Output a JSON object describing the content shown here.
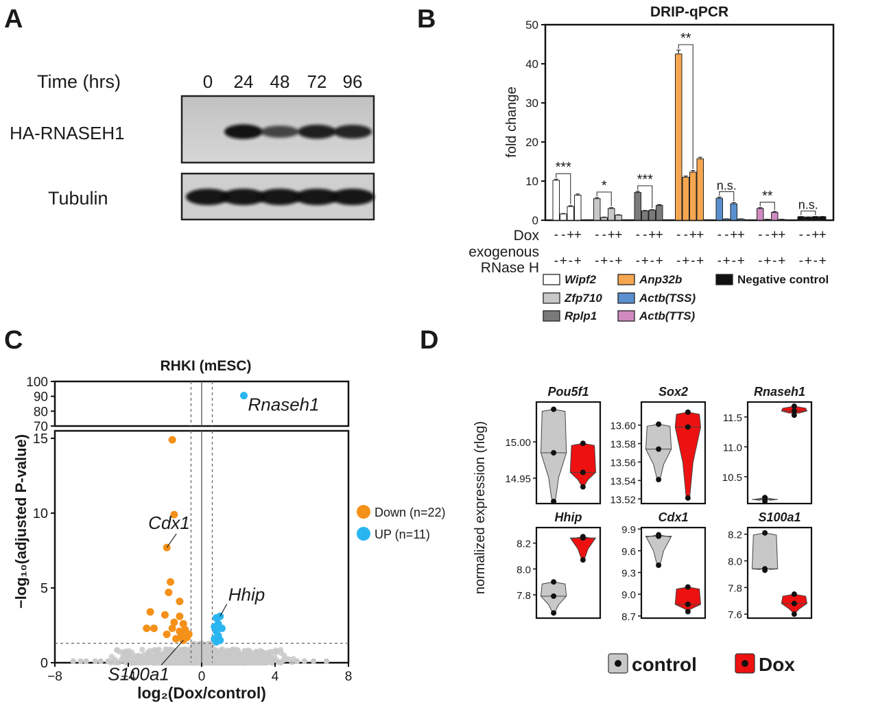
{
  "panel_letters": {
    "a": "A",
    "b": "B",
    "c": "C",
    "d": "D"
  },
  "panel_a": {
    "time_label": "Time (hrs)",
    "timepoints": [
      "0",
      "24",
      "48",
      "72",
      "96"
    ],
    "blot_labels": [
      "HA-RNASEH1",
      "Tubulin"
    ],
    "ha_band_intensity": [
      0.0,
      0.95,
      0.55,
      0.85,
      0.8
    ],
    "tubulin_band_intensity": [
      1,
      1,
      1,
      1,
      1
    ]
  },
  "panel_b": {
    "chart_data": {
      "type": "bar",
      "title": "DRIP-qPCR",
      "ylabel": "fold change",
      "ylim": [
        0,
        50
      ],
      "yticks": [
        0,
        10,
        20,
        30,
        40,
        50
      ],
      "row_labels": {
        "dox": "Dox",
        "rnase_line1": "exogenous",
        "rnase_line2": "RNase H"
      },
      "condition_dox": [
        "-",
        "-",
        "+",
        "+"
      ],
      "condition_rnase": [
        "-",
        "+",
        "-",
        "+"
      ],
      "genes": [
        {
          "name": "Wipf2",
          "color": "#ffffff",
          "values": [
            10.2,
            1.6,
            3.5,
            6.4
          ],
          "errors": [
            0.3,
            0.1,
            0.2,
            0.3
          ],
          "sig": "***"
        },
        {
          "name": "Zfp710",
          "color": "#c8c8c8",
          "values": [
            5.5,
            0.7,
            3.0,
            1.3
          ],
          "errors": [
            0.3,
            0.1,
            0.2,
            0.1
          ],
          "sig": "*"
        },
        {
          "name": "Rplp1",
          "color": "#7a7a7a",
          "values": [
            7.1,
            2.4,
            2.6,
            3.8
          ],
          "errors": [
            0.3,
            0.1,
            0.1,
            0.2
          ],
          "sig": "***"
        },
        {
          "name": "Anp32b",
          "color": "#f5a650",
          "values": [
            42.5,
            11.0,
            12.3,
            15.7
          ],
          "errors": [
            1.0,
            0.3,
            0.4,
            0.4
          ],
          "sig": "**"
        },
        {
          "name": "Actb(TSS)",
          "color": "#5a8fd0",
          "values": [
            5.6,
            0.3,
            4.2,
            0.3
          ],
          "errors": [
            0.3,
            0.05,
            0.3,
            0.05
          ],
          "sig": "n.s."
        },
        {
          "name": "Actb(TTS)",
          "color": "#d08ac0",
          "values": [
            3.0,
            0.2,
            2.0,
            0.2
          ],
          "errors": [
            0.2,
            0.05,
            0.2,
            0.05
          ],
          "sig": "**"
        },
        {
          "name": "Negative control",
          "color": "#111111",
          "values": [
            0.9,
            0.8,
            0.9,
            0.9
          ],
          "errors": [
            0.05,
            0.05,
            0.05,
            0.05
          ],
          "sig": "n.s."
        }
      ]
    }
  },
  "panel_c": {
    "chart_data": {
      "type": "scatter",
      "title": "RHKI (mESC)",
      "xlabel": "log₂(Dox/control)",
      "ylabel": "−log₁₀(adjusted P-value)",
      "xlim": [
        -8,
        8
      ],
      "xticks": [
        -8,
        -4,
        0,
        4,
        8
      ],
      "ylim_lower": [
        0,
        15.5
      ],
      "yticks_lower": [
        0,
        5,
        10,
        15
      ],
      "ylim_upper": [
        70,
        100
      ],
      "yticks_upper": [
        70,
        80,
        90,
        100
      ],
      "threshold_x": [
        -0.58,
        0.58
      ],
      "threshold_y": 1.3,
      "legend": [
        {
          "label": "Down (n=22)",
          "color": "#f59018"
        },
        {
          "label": "UP (n=11)",
          "color": "#29b6f0"
        }
      ],
      "down_points": [
        [
          -1.6,
          14.9
        ],
        [
          -1.5,
          9.9
        ],
        [
          -1.9,
          7.7
        ],
        [
          -1.7,
          5.4
        ],
        [
          -1.8,
          4.7
        ],
        [
          -1.2,
          4.1
        ],
        [
          -2.8,
          3.4
        ],
        [
          -2.0,
          3.2
        ],
        [
          -1.2,
          3.1
        ],
        [
          -1.5,
          2.7
        ],
        [
          -1.0,
          2.6
        ],
        [
          -3.0,
          2.3
        ],
        [
          -2.6,
          2.3
        ],
        [
          -1.6,
          2.3
        ],
        [
          -1.2,
          2.1
        ],
        [
          -0.9,
          2.2
        ],
        [
          -1.9,
          1.9
        ],
        [
          -1.4,
          1.6
        ],
        [
          -1.0,
          1.5
        ],
        [
          -0.8,
          1.7
        ],
        [
          -0.7,
          1.9
        ],
        [
          -1.1,
          1.8
        ]
      ],
      "up_points": [
        [
          1.0,
          3.1
        ],
        [
          0.8,
          3.0
        ],
        [
          0.9,
          2.6
        ],
        [
          0.7,
          2.4
        ],
        [
          1.1,
          2.3
        ],
        [
          0.8,
          2.1
        ],
        [
          0.9,
          1.8
        ],
        [
          0.7,
          1.6
        ],
        [
          1.0,
          1.5
        ],
        [
          0.8,
          1.4
        ]
      ],
      "up_outlier": [
        2.3,
        90.5
      ],
      "labels": [
        {
          "text": "Rnaseh1",
          "x": 2.3,
          "y": 90.5
        },
        {
          "text": "Cdx1",
          "x": -1.9,
          "y": 7.7
        },
        {
          "text": "Hhip",
          "x": 1.0,
          "y": 3.1
        },
        {
          "text": "S100a1",
          "x": -1.0,
          "y": 1.5
        }
      ]
    }
  },
  "panel_d": {
    "ylabel": "normalized expression (rlog)",
    "legend": [
      {
        "label": "control",
        "color": "#c8c8c8"
      },
      {
        "label": "Dox",
        "color": "#ee1111"
      }
    ],
    "chart_data": [
      {
        "type": "violin",
        "title": "Pou5f1",
        "ylim": [
          14.915,
          15.055
        ],
        "yticks": [
          14.95,
          15.0
        ],
        "tick_labels": [
          "14.95",
          "15.00"
        ],
        "control": [
          15.045,
          14.985,
          14.918
        ],
        "dox": [
          14.998,
          14.958,
          14.938
        ]
      },
      {
        "type": "violin",
        "title": "Sox2",
        "ylim": [
          13.515,
          13.625
        ],
        "yticks": [
          13.52,
          13.54,
          13.56,
          13.58,
          13.6
        ],
        "tick_labels": [
          "13.52",
          "13.54",
          "13.56",
          "13.58",
          "13.60"
        ],
        "control": [
          13.601,
          13.574,
          13.541
        ],
        "dox": [
          13.614,
          13.598,
          13.521
        ]
      },
      {
        "type": "violin",
        "title": "Rnaseh1",
        "ylim": [
          10.05,
          11.75
        ],
        "yticks": [
          10.5,
          11.0,
          11.5
        ],
        "tick_labels": [
          "10.5",
          "11.0",
          "11.5"
        ],
        "control": [
          10.15,
          10.12,
          10.09
        ],
        "dox": [
          11.68,
          11.6,
          11.53
        ]
      },
      {
        "type": "violin",
        "title": "Hhip",
        "ylim": [
          7.62,
          8.32
        ],
        "yticks": [
          7.8,
          8.0,
          8.2
        ],
        "tick_labels": [
          "7.8",
          "8.0",
          "8.2"
        ],
        "control": [
          7.9,
          7.79,
          7.66
        ],
        "dox": [
          8.25,
          8.24,
          8.07
        ]
      },
      {
        "type": "violin",
        "title": "Cdx1",
        "ylim": [
          8.67,
          9.92
        ],
        "yticks": [
          8.7,
          9.0,
          9.3,
          9.6,
          9.9
        ],
        "tick_labels": [
          "8.7",
          "9.0",
          "9.3",
          "9.6",
          "9.9"
        ],
        "control": [
          9.82,
          9.8,
          9.4
        ],
        "dox": [
          9.1,
          8.86,
          8.76
        ]
      },
      {
        "type": "violin",
        "title": "S100a1",
        "ylim": [
          7.57,
          8.25
        ],
        "yticks": [
          7.6,
          7.8,
          8.0,
          8.2
        ],
        "tick_labels": [
          "7.6",
          "7.8",
          "8.0",
          "8.2"
        ],
        "control": [
          8.21,
          7.94,
          7.93
        ],
        "dox": [
          7.75,
          7.68,
          7.6
        ]
      }
    ]
  }
}
